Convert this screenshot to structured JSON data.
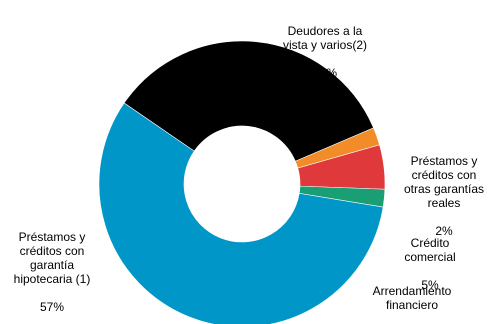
{
  "chart_data": {
    "type": "pie",
    "donut": true,
    "title": "",
    "slices": [
      {
        "label": "Deudores a la\nvista y varios(2)",
        "value": 34,
        "value_label": "34%",
        "color": "#000000"
      },
      {
        "label": "Préstamos y\ncréditos con\notras garantías\nreales",
        "value": 2,
        "value_label": "2%",
        "color": "#F28C28"
      },
      {
        "label": "Crédito\ncomercial",
        "value": 5,
        "value_label": "5%",
        "color": "#E0393C"
      },
      {
        "label": "Arrendamiento\nfinanciero",
        "value": 2,
        "value_label": "2%",
        "color": "#1A9E74"
      },
      {
        "label": "Préstamos y\ncréditos con\ngarantía\nhipotecaria (1)",
        "value": 57,
        "value_label": "57%",
        "color": "#0096C8"
      }
    ]
  }
}
